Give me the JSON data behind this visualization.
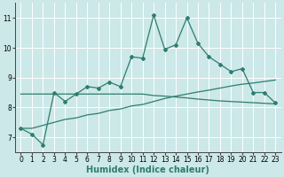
{
  "xlabel": "Humidex (Indice chaleur)",
  "bg_color": "#cce8e8",
  "grid_color": "#ffffff",
  "line_color": "#2e7d6e",
  "x_data": [
    0,
    1,
    2,
    3,
    4,
    5,
    6,
    7,
    8,
    9,
    10,
    11,
    12,
    13,
    14,
    15,
    16,
    17,
    18,
    19,
    20,
    21,
    22,
    23
  ],
  "y_main": [
    7.3,
    7.1,
    6.75,
    8.5,
    8.2,
    8.45,
    8.7,
    8.65,
    8.85,
    8.7,
    9.7,
    9.65,
    11.1,
    9.95,
    10.1,
    11.0,
    10.15,
    9.7,
    9.45,
    9.2,
    9.3,
    8.5,
    8.5,
    8.15
  ],
  "y_trend": [
    7.3,
    7.3,
    7.4,
    7.5,
    7.6,
    7.65,
    7.75,
    7.8,
    7.9,
    7.95,
    8.05,
    8.1,
    8.2,
    8.3,
    8.38,
    8.45,
    8.52,
    8.58,
    8.65,
    8.72,
    8.78,
    8.82,
    8.87,
    8.92
  ],
  "y_flat": [
    8.45,
    8.45,
    8.45,
    8.45,
    8.45,
    8.45,
    8.45,
    8.45,
    8.45,
    8.45,
    8.45,
    8.45,
    8.4,
    8.38,
    8.35,
    8.32,
    8.28,
    8.25,
    8.22,
    8.2,
    8.18,
    8.16,
    8.14,
    8.12
  ],
  "xlim": [
    -0.5,
    23.5
  ],
  "ylim": [
    6.5,
    11.5
  ],
  "yticks": [
    7,
    8,
    9,
    10,
    11
  ],
  "xtick_labels": [
    "0",
    "1",
    "2",
    "3",
    "4",
    "5",
    "6",
    "7",
    "8",
    "9",
    "10",
    "11",
    "12",
    "13",
    "14",
    "15",
    "16",
    "17",
    "18",
    "19",
    "20",
    "21",
    "22",
    "23"
  ],
  "tick_fontsize": 5.5,
  "xlabel_fontsize": 7,
  "marker": "D",
  "markersize": 2.0,
  "linewidth": 0.9
}
